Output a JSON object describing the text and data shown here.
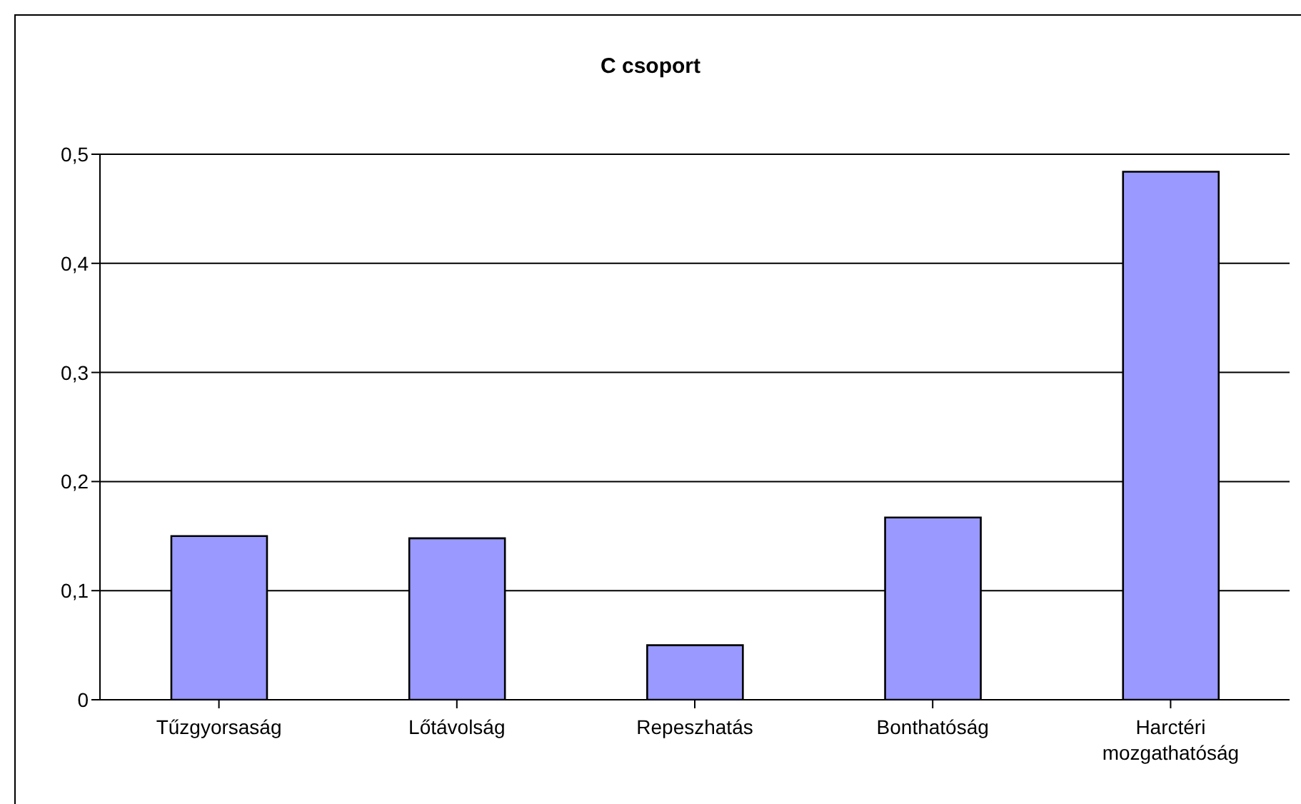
{
  "chart_data": {
    "type": "bar",
    "title": "C csoport",
    "categories": [
      "Tűzgyorsaság",
      "Lőtávolság",
      "Repeszhatás",
      "Bonthatóság",
      "Harctéri mozgathatóság"
    ],
    "values": [
      0.15,
      0.148,
      0.05,
      0.167,
      0.484
    ],
    "color": "#9999ff",
    "ylim": [
      0,
      0.5
    ],
    "yticks": [
      {
        "value": 0,
        "label": "0"
      },
      {
        "value": 0.1,
        "label": "0,1"
      },
      {
        "value": 0.2,
        "label": "0,2"
      },
      {
        "value": 0.3,
        "label": "0,3"
      },
      {
        "value": 0.4,
        "label": "0,4"
      },
      {
        "value": 0.5,
        "label": "0,5"
      }
    ],
    "grid": "y",
    "legend": false
  }
}
